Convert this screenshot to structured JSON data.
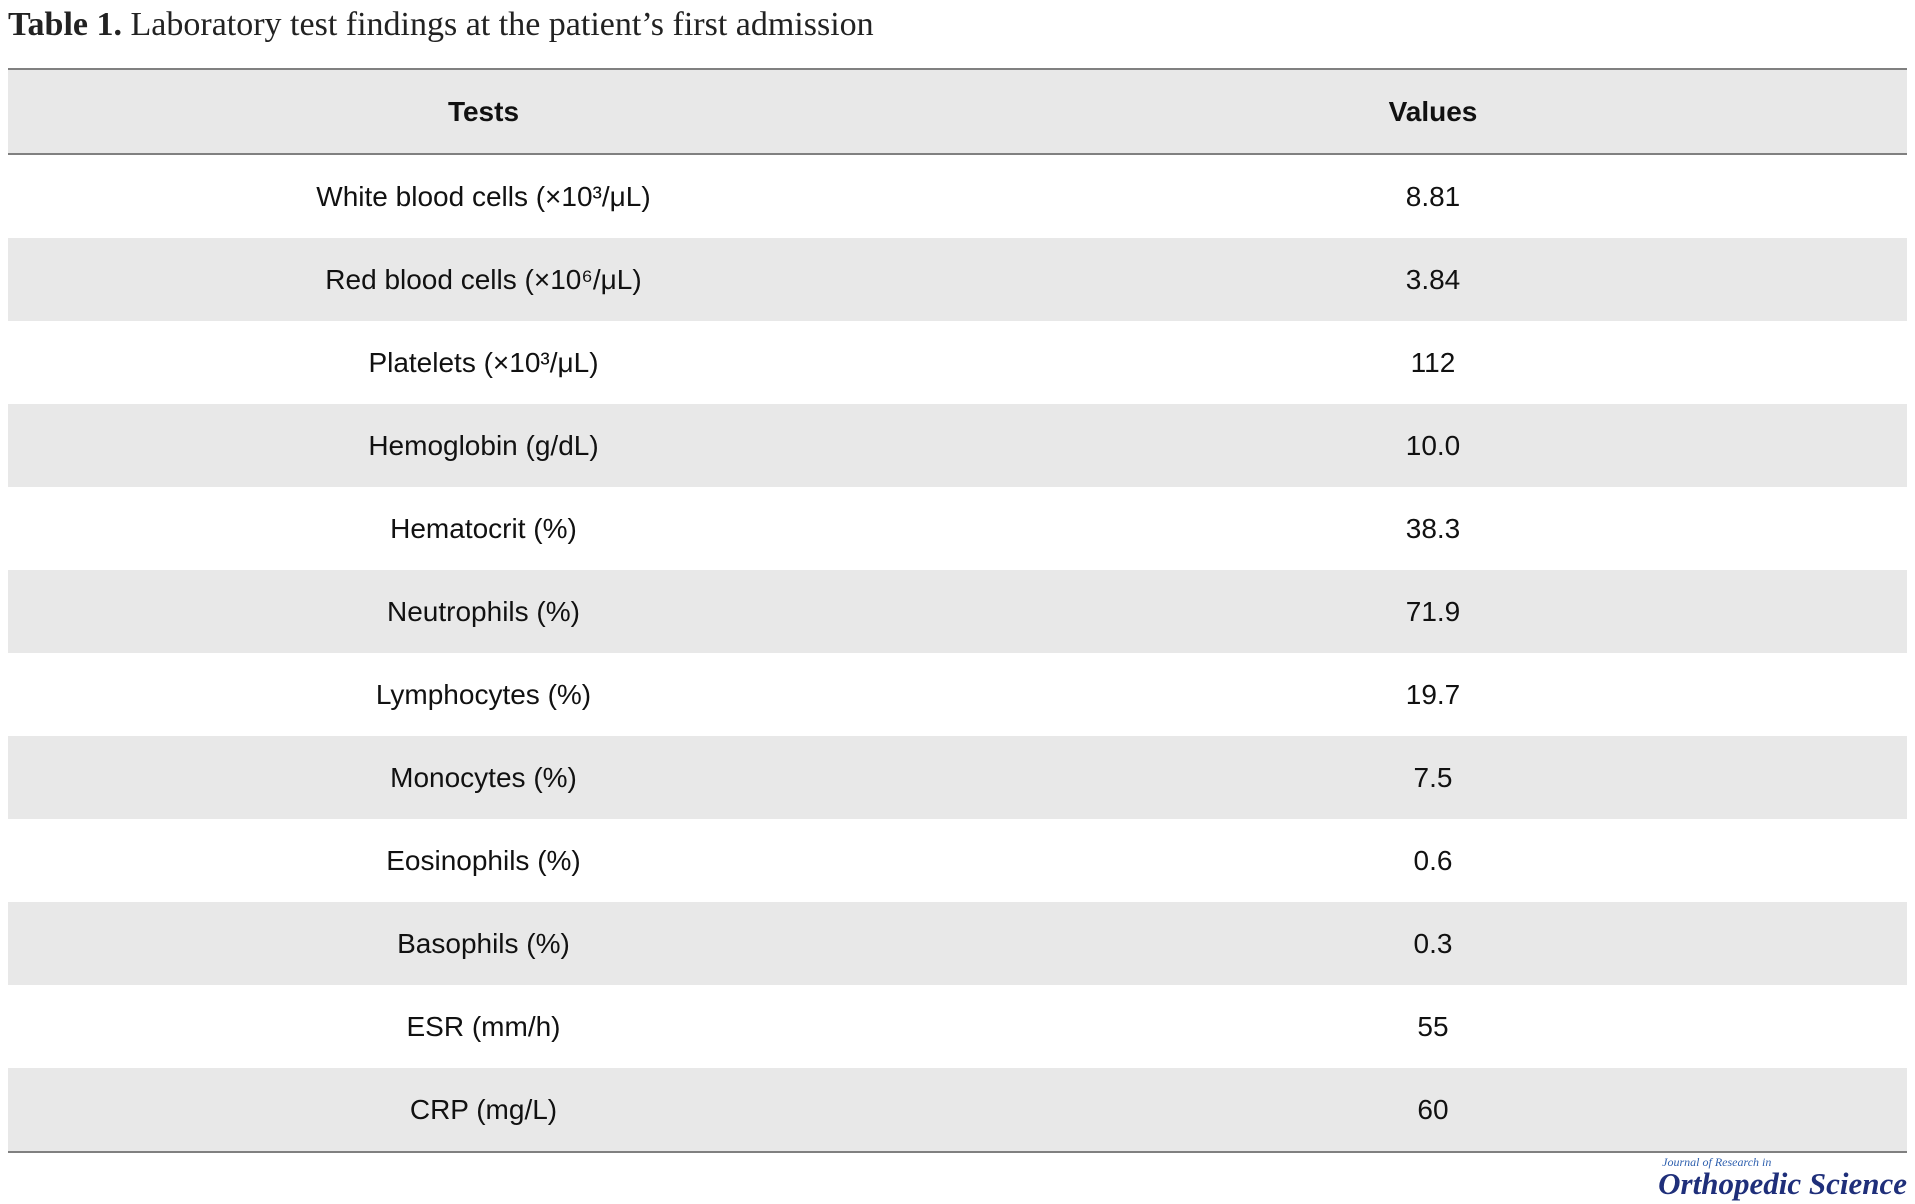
{
  "caption": {
    "label": "Table 1.",
    "text": "Laboratory test findings at the patient’s first admission"
  },
  "table": {
    "headers": [
      "Tests",
      "Values"
    ],
    "rows": [
      {
        "test": "White blood cells (×10³/μL)",
        "value": "8.81"
      },
      {
        "test": "Red blood cells (×10⁶/μL)",
        "value": "3.84"
      },
      {
        "test": "Platelets (×10³/μL)",
        "value": "112"
      },
      {
        "test": "Hemoglobin (g/dL)",
        "value": "10.0"
      },
      {
        "test": "Hematocrit (%)",
        "value": "38.3"
      },
      {
        "test": "Neutrophils (%)",
        "value": "71.9"
      },
      {
        "test": "Lymphocytes (%)",
        "value": "19.7"
      },
      {
        "test": "Monocytes (%)",
        "value": "7.5"
      },
      {
        "test": "Eosinophils (%)",
        "value": "0.6"
      },
      {
        "test": "Basophils (%)",
        "value": "0.3"
      },
      {
        "test": "ESR (mm/h)",
        "value": "55"
      },
      {
        "test": "CRP (mg/L)",
        "value": "60"
      }
    ]
  },
  "journal_logo": {
    "small": "Journal of Research in",
    "big": "Orthopedic Science"
  },
  "colors": {
    "header_bg": "#e8e8e8",
    "stripe_bg": "#e8e8e8",
    "rule": "#808080",
    "logo": "#1f2f7a"
  }
}
